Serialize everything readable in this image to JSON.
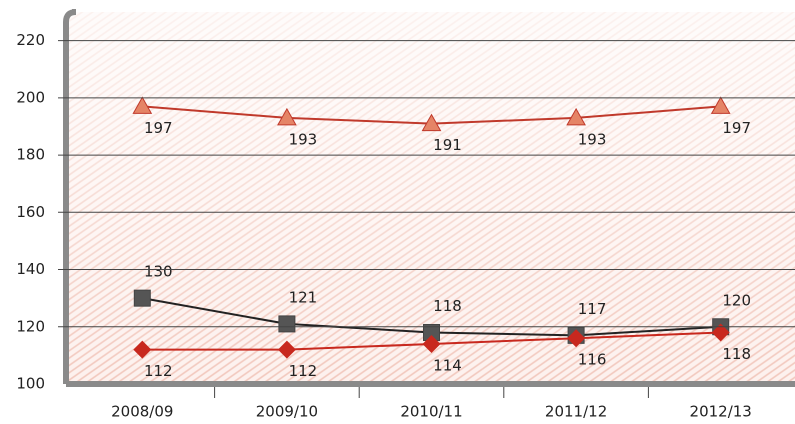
{
  "chart_data": {
    "type": "line",
    "categories": [
      "2008/09",
      "2009/10",
      "2010/11",
      "2011/12",
      "2012/13"
    ],
    "series": [
      {
        "marker": "triangle",
        "color": "#c0392b",
        "values": [
          197,
          193,
          191,
          193,
          197
        ]
      },
      {
        "marker": "square",
        "color": "#555555",
        "values": [
          130,
          121,
          118,
          117,
          120
        ]
      },
      {
        "marker": "diamond",
        "color": "#c8281e",
        "values": [
          112,
          112,
          114,
          116,
          118
        ]
      }
    ],
    "ylim": [
      100,
      230
    ],
    "yticks": [
      100,
      120,
      140,
      160,
      180,
      200,
      220
    ],
    "grid": true
  }
}
